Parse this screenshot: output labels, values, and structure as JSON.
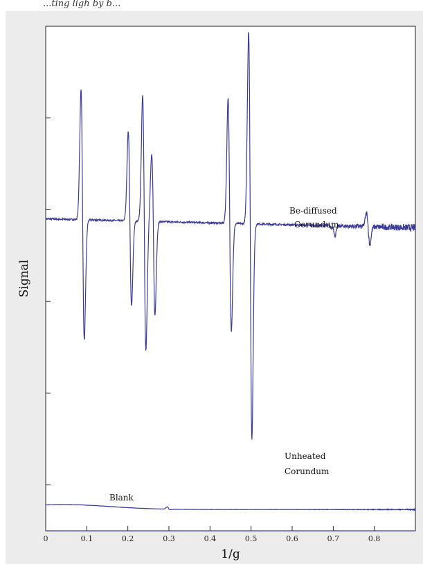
{
  "page": {
    "caption_fragment": "...ting ligh by b...",
    "colors": {
      "panel_bg": "#ececec",
      "plot_bg": "#ffffff",
      "axis": "#222222",
      "series": "#3b3b9a"
    }
  },
  "chart_data": {
    "type": "line",
    "title": "",
    "xlabel": "1/g",
    "ylabel": "Signal",
    "xlim": [
      0,
      0.9
    ],
    "ylim": [
      0,
      1
    ],
    "x_ticks": [
      0,
      0.1,
      0.2,
      0.3,
      0.4,
      0.5,
      0.6,
      0.7,
      0.8
    ],
    "x_tick_labels": [
      "0",
      "0.1",
      "0.2",
      "0.3",
      "0.4",
      "0.5",
      "0.6",
      "0.7",
      "0.8"
    ],
    "y_tick_labels_shown": false,
    "grid": false,
    "legend": "none",
    "annotations": [
      {
        "text": "Be-diffused",
        "series": "be"
      },
      {
        "text": "Corundum",
        "series": "be"
      },
      {
        "text": "Unheated",
        "series": "unheated"
      },
      {
        "text": "Corundum",
        "series": "unheated"
      },
      {
        "text": "Blank",
        "series": "blank"
      }
    ],
    "series": [
      {
        "id": "be",
        "baseline": 0.57,
        "baseline_end": 0.55,
        "features": [
          {
            "x": 0.09,
            "up": 0.86,
            "down": 0.3
          },
          {
            "x": 0.205,
            "up": 0.77,
            "down": 0.38
          },
          {
            "x": 0.24,
            "up": 0.85,
            "down": 0.28
          },
          {
            "x": 0.262,
            "up": 0.72,
            "down": 0.36
          },
          {
            "x": 0.448,
            "up": 0.85,
            "down": 0.33
          },
          {
            "x": 0.498,
            "up": 1.0,
            "down": 0.09
          },
          {
            "x": 0.785,
            "up": 0.6,
            "down": 0.53
          },
          {
            "x": 0.7,
            "up": 0.565,
            "down": 0.548
          }
        ]
      },
      {
        "id": "unheated",
        "baseline": 0.045,
        "baseline_end": 0.045,
        "broad": {
          "x": 0.04,
          "amplitude": 0.085,
          "width": 0.28
        },
        "features": [
          {
            "x": 0.3,
            "up": 0.085,
            "down": 0.035
          }
        ]
      },
      {
        "id": "blank",
        "baseline": 0.045,
        "baseline_end": 0.04,
        "features": []
      }
    ]
  }
}
